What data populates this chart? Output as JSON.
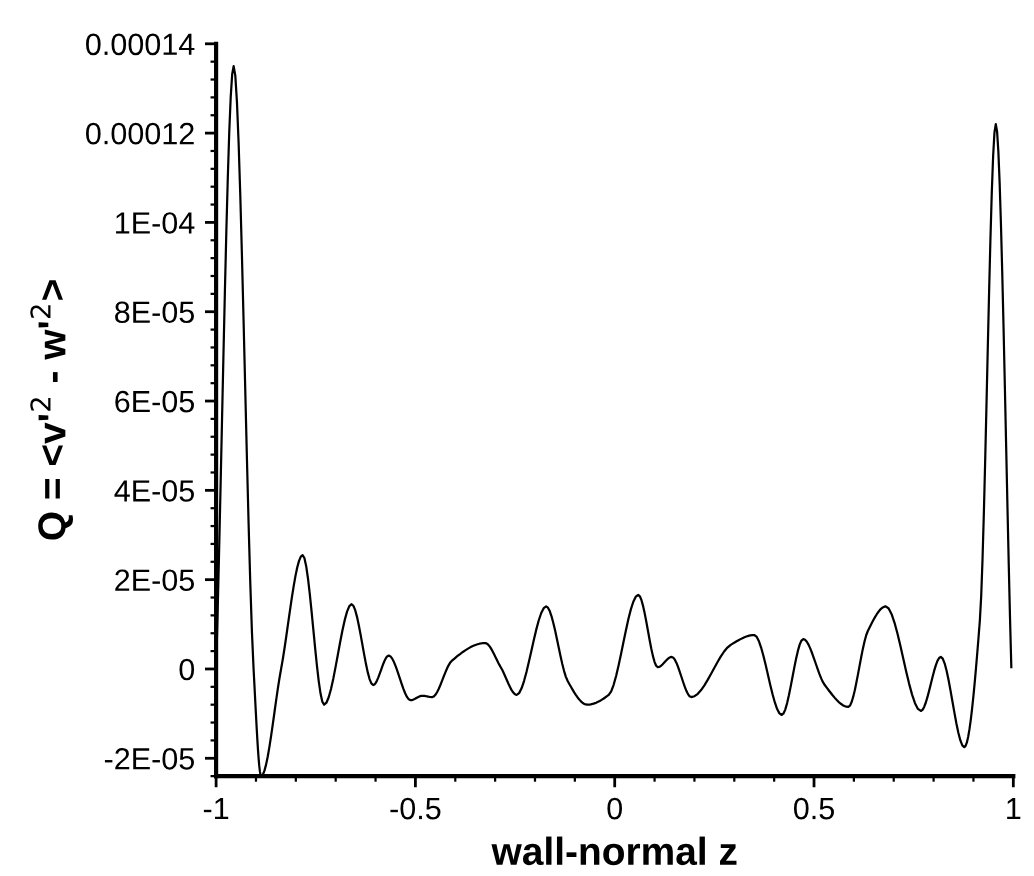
{
  "chart_data": {
    "type": "line",
    "xlabel": "wall-normal z",
    "ylabel": "Q = <v'$^{2}$ - w'$^{2}$>",
    "x": [
      -1,
      -0.956,
      -0.906,
      -0.887,
      -0.837,
      -0.783,
      -0.729,
      -0.66,
      -0.606,
      -0.567,
      -0.512,
      -0.483,
      -0.458,
      -0.409,
      -0.325,
      -0.286,
      -0.246,
      -0.172,
      -0.118,
      -0.069,
      -0.015,
      0.059,
      0.108,
      0.143,
      0.192,
      0.291,
      0.35,
      0.419,
      0.473,
      0.527,
      0.586,
      0.635,
      0.68,
      0.768,
      0.818,
      0.877,
      0.916,
      0.956,
      0.995
    ],
    "series": [
      {
        "color": "#000000",
        "values": [
          0,
          0.000135,
          0,
          -2.4e-05,
          0,
          2.55e-05,
          -8e-06,
          1.45e-05,
          -3.6e-06,
          3e-06,
          -7e-06,
          -6e-06,
          -6.3e-06,
          1.8e-06,
          5.8e-06,
          4e-07,
          -5.8e-06,
          1.4e-05,
          -2.7e-06,
          -8e-06,
          -5.8e-06,
          1.66e-05,
          4e-07,
          2.7e-06,
          -6.3e-06,
          5.4e-06,
          7.6e-06,
          -1.03e-05,
          6.7e-06,
          -3.6e-06,
          -8.5e-06,
          8.5e-06,
          1.4e-05,
          -9.4e-06,
          2.7e-06,
          -1.75e-05,
          1.08e-05,
          0.000122,
          4e-07
        ]
      }
    ],
    "xlim": [
      -1,
      1
    ],
    "ylim": [
      -2.4e-05,
      0.00014
    ],
    "xticks": [
      -1,
      -0.5,
      0,
      0.5,
      1
    ],
    "yticks": [
      {
        "value": 0.00014,
        "label": "0.00014"
      },
      {
        "value": 0.00012,
        "label": "0.00012"
      },
      {
        "value": 0.0001,
        "label": "1E-04"
      },
      {
        "value": 8e-05,
        "label": "8E-05"
      },
      {
        "value": 6e-05,
        "label": "6E-05"
      },
      {
        "value": 4e-05,
        "label": "4E-05"
      },
      {
        "value": 2e-05,
        "label": "2E-05"
      },
      {
        "value": 0,
        "label": "0"
      },
      {
        "value": -2e-05,
        "label": "-2E-05"
      }
    ],
    "grid": false,
    "marker": "none",
    "line_style": "solid"
  }
}
